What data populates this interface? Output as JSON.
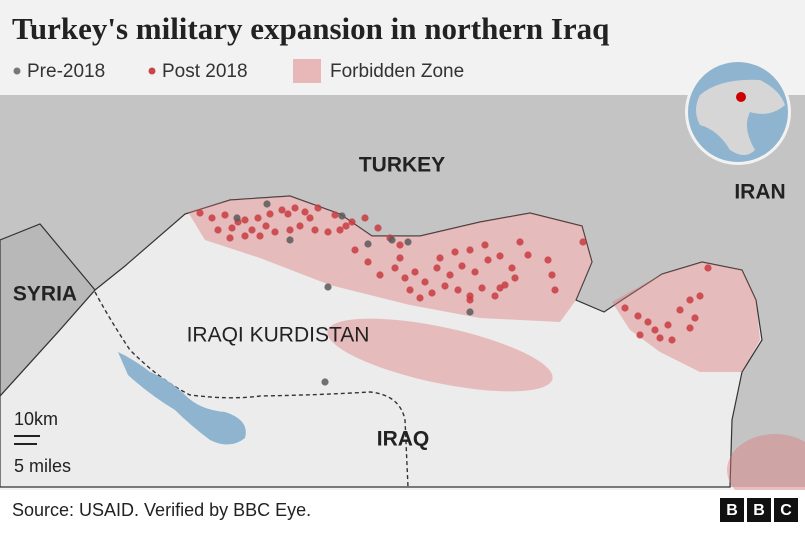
{
  "header": {
    "title": "Turkey's military expansion in northern Iraq"
  },
  "legend": {
    "items": [
      "Pre-2018",
      "Post 2018",
      "Forbidden Zone"
    ]
  },
  "map": {
    "labels": [
      "TURKEY",
      "IRAN",
      "SYRIA",
      "IRAQI KURDISTAN",
      "IRAQ"
    ],
    "scale": {
      "km": "10km",
      "miles": "5 miles"
    }
  },
  "footer": {
    "source": "Source: USAID. Verified by BBC Eye.",
    "logo": [
      "B",
      "B",
      "C"
    ]
  }
}
